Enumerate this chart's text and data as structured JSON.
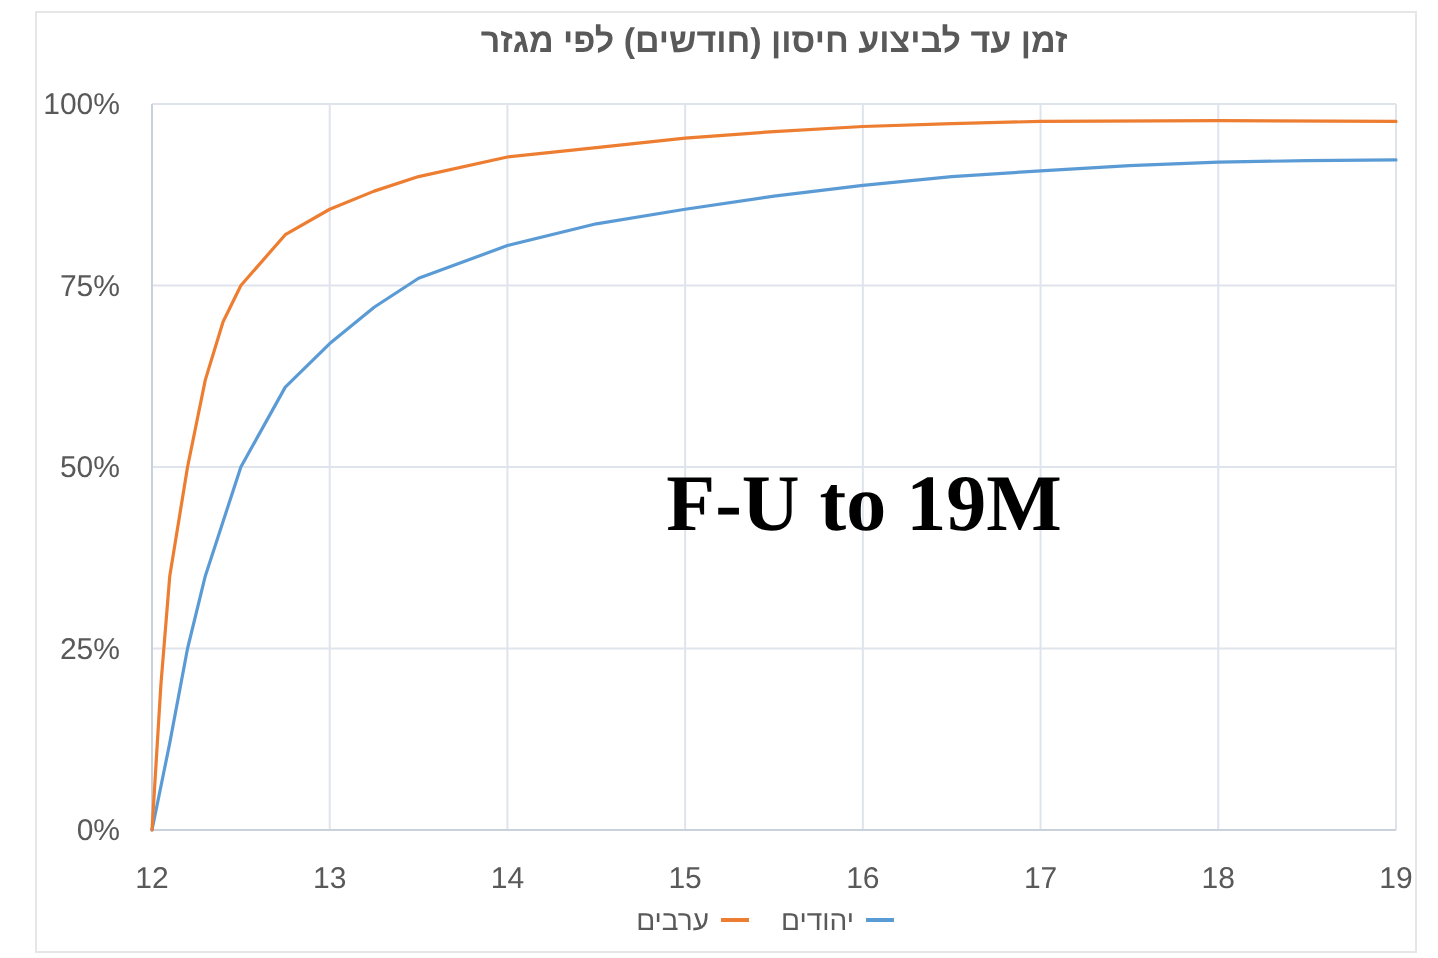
{
  "chart_data": {
    "type": "line",
    "title": "זמן עד לביצוע חיסון (חודשים) לפי מגזר",
    "annotations": [
      "F-U to 19M"
    ],
    "xlim": [
      12,
      19
    ],
    "xticks": [
      12,
      13,
      14,
      15,
      16,
      17,
      18,
      19
    ],
    "ylim": [
      0,
      100
    ],
    "yticks": [
      {
        "value": 0,
        "label": "0%"
      },
      {
        "value": 25,
        "label": "25%"
      },
      {
        "value": 50,
        "label": "50%"
      },
      {
        "value": 75,
        "label": "75%"
      },
      {
        "value": 100,
        "label": "100%"
      }
    ],
    "grid": true,
    "legend": "bottom",
    "marker": "none",
    "line_style": "solid",
    "series": [
      {
        "name": "יהודים",
        "color": "#5b9bd5",
        "x": [
          12,
          12.1,
          12.2,
          12.3,
          12.5,
          12.75,
          13,
          13.25,
          13.5,
          14,
          14.5,
          15,
          15.5,
          16,
          16.5,
          17,
          17.5,
          18,
          18.5,
          19
        ],
        "values": [
          0,
          12,
          25,
          35,
          50,
          61,
          67,
          72,
          76,
          80.5,
          83.5,
          85.5,
          87.3,
          88.8,
          90,
          90.8,
          91.5,
          92,
          92.2,
          92.3
        ]
      },
      {
        "name": "ערבים",
        "color": "#ed7d31",
        "x": [
          12,
          12.05,
          12.1,
          12.2,
          12.3,
          12.4,
          12.5,
          12.75,
          13,
          13.25,
          13.5,
          14,
          14.5,
          15,
          15.5,
          16,
          16.5,
          17,
          18,
          19
        ],
        "values": [
          0,
          20,
          35,
          50,
          62,
          70,
          75,
          82,
          85.5,
          88,
          90,
          92.7,
          94,
          95.3,
          96.2,
          96.9,
          97.3,
          97.6,
          97.7,
          97.6
        ]
      }
    ]
  }
}
